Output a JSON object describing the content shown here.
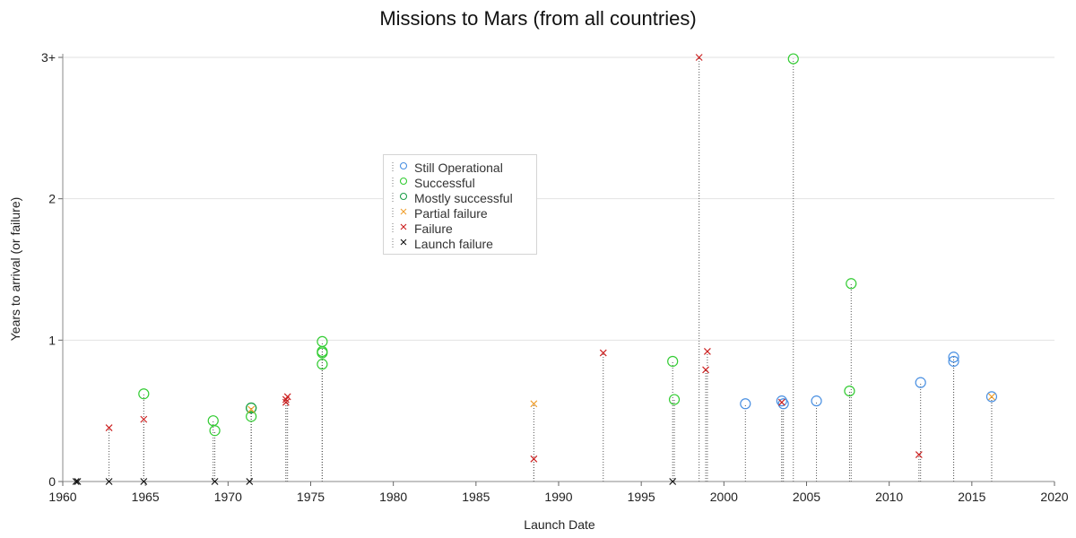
{
  "chart_data": {
    "type": "scatter",
    "title": "Missions to Mars (from all countries)",
    "xlabel": "Launch Date",
    "ylabel": "Years to arrival (or failure)",
    "xlim": [
      1960,
      2020
    ],
    "ylim": [
      0,
      3
    ],
    "x_ticks": [
      "1960",
      "1965",
      "1970",
      "1975",
      "1980",
      "1985",
      "1990",
      "1995",
      "2000",
      "2005",
      "2010",
      "2015",
      "2020"
    ],
    "y_ticks": [
      {
        "value": 0,
        "label": "0"
      },
      {
        "value": 1,
        "label": "1"
      },
      {
        "value": 2,
        "label": "2"
      },
      {
        "value": 3,
        "label": "3+"
      }
    ],
    "grid": "horizontal",
    "legend_position": "middle-left",
    "series": [
      {
        "name": "Still Operational",
        "marker": "circle",
        "color": "#4a90e2",
        "points": [
          {
            "x": 2001.3,
            "y": 0.55
          },
          {
            "x": 2003.5,
            "y": 0.57
          },
          {
            "x": 2003.6,
            "y": 0.55
          },
          {
            "x": 2005.6,
            "y": 0.57
          },
          {
            "x": 2011.9,
            "y": 0.7
          },
          {
            "x": 2013.9,
            "y": 0.85
          },
          {
            "x": 2013.9,
            "y": 0.88
          },
          {
            "x": 2016.2,
            "y": 0.6
          }
        ]
      },
      {
        "name": "Successful",
        "marker": "circle",
        "color": "#33cc33",
        "points": [
          {
            "x": 1964.9,
            "y": 0.62
          },
          {
            "x": 1969.1,
            "y": 0.43
          },
          {
            "x": 1969.2,
            "y": 0.36
          },
          {
            "x": 1971.4,
            "y": 0.46
          },
          {
            "x": 1971.4,
            "y": 0.52
          },
          {
            "x": 1975.7,
            "y": 0.83
          },
          {
            "x": 1975.7,
            "y": 0.91
          },
          {
            "x": 1975.7,
            "y": 0.92
          },
          {
            "x": 1975.7,
            "y": 0.99
          },
          {
            "x": 1996.9,
            "y": 0.85
          },
          {
            "x": 1997.0,
            "y": 0.58
          },
          {
            "x": 2004.2,
            "y": 2.99
          },
          {
            "x": 2007.6,
            "y": 0.64
          },
          {
            "x": 2007.7,
            "y": 1.4
          }
        ]
      },
      {
        "name": "Mostly successful",
        "marker": "circle",
        "color": "#1e9e4a",
        "points": [
          {
            "x": 1971.4,
            "y": 0.52
          }
        ]
      },
      {
        "name": "Partial failure",
        "marker": "x",
        "color": "#f0a030",
        "points": [
          {
            "x": 1988.5,
            "y": 0.55
          },
          {
            "x": 1971.4,
            "y": 0.51
          },
          {
            "x": 2016.2,
            "y": 0.6
          }
        ]
      },
      {
        "name": "Failure",
        "marker": "x",
        "color": "#cc2222",
        "points": [
          {
            "x": 1962.8,
            "y": 0.38
          },
          {
            "x": 1964.9,
            "y": 0.44
          },
          {
            "x": 1973.5,
            "y": 0.56
          },
          {
            "x": 1973.5,
            "y": 0.58
          },
          {
            "x": 1973.6,
            "y": 0.6
          },
          {
            "x": 1988.5,
            "y": 0.16
          },
          {
            "x": 1992.7,
            "y": 0.91
          },
          {
            "x": 1998.5,
            "y": 3.0
          },
          {
            "x": 1998.9,
            "y": 0.79
          },
          {
            "x": 1999.0,
            "y": 0.92
          },
          {
            "x": 2003.5,
            "y": 0.56
          },
          {
            "x": 2011.8,
            "y": 0.19
          }
        ]
      },
      {
        "name": "Launch failure",
        "marker": "x",
        "color": "#111111",
        "points": [
          {
            "x": 1960.8,
            "y": 0
          },
          {
            "x": 1960.9,
            "y": 0
          },
          {
            "x": 1962.8,
            "y": 0
          },
          {
            "x": 1964.9,
            "y": 0
          },
          {
            "x": 1969.2,
            "y": 0
          },
          {
            "x": 1971.3,
            "y": 0
          },
          {
            "x": 1996.9,
            "y": 0
          }
        ]
      }
    ]
  }
}
